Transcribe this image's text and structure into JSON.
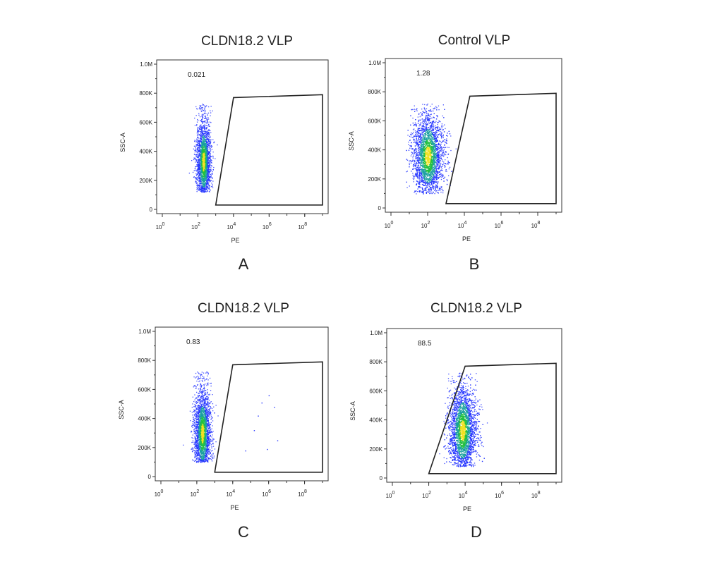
{
  "chart_data": [
    {
      "type": "scatter",
      "panel_label": "A",
      "title": "CLDN18.2 VLP",
      "xlabel": "PE",
      "ylabel": "SSC-A",
      "xscale": "log",
      "xlim": [
        1,
        1000000000
      ],
      "ylim": [
        0,
        1000000
      ],
      "xticks": [
        1,
        100,
        10000,
        1000000,
        100000000
      ],
      "yticks": [
        0,
        200000,
        400000,
        600000,
        800000,
        1000000
      ],
      "gate_percent": "0.021",
      "gate": {
        "x": [
          1000,
          10000,
          1000000000,
          1000000000
        ],
        "y": [
          30000,
          770000,
          790000,
          30000
        ]
      },
      "populations": [
        {
          "name": "",
          "center_log10_x": 2.3,
          "center_y": 330000,
          "spread_log10_x": 0.4,
          "y_range": [
            120000,
            730000
          ],
          "count": 2400
        }
      ],
      "outliers": []
    },
    {
      "type": "scatter",
      "panel_label": "B",
      "title": "Control VLP",
      "xlabel": "PE",
      "ylabel": "SSC-A",
      "xscale": "log",
      "xlim": [
        1,
        1000000000
      ],
      "ylim": [
        0,
        1000000
      ],
      "xticks": [
        1,
        100,
        10000,
        1000000,
        100000000
      ],
      "yticks": [
        0,
        200000,
        400000,
        600000,
        800000,
        1000000
      ],
      "gate_percent": "1.28",
      "gate": {
        "x": [
          1000,
          20000,
          1000000000,
          1000000000
        ],
        "y": [
          30000,
          770000,
          790000,
          30000
        ]
      },
      "populations": [
        {
          "name": "",
          "center_log10_x": 2.0,
          "center_y": 360000,
          "spread_log10_x": 0.85,
          "y_range": [
            100000,
            720000
          ],
          "count": 3600
        }
      ],
      "outliers": []
    },
    {
      "type": "scatter",
      "panel_label": "C",
      "title": "CLDN18.2 VLP",
      "xlabel": "PE",
      "ylabel": "SSC-A",
      "xscale": "log",
      "xlim": [
        1,
        1000000000
      ],
      "ylim": [
        0,
        1000000
      ],
      "xticks": [
        1,
        100,
        10000,
        1000000,
        100000000
      ],
      "yticks": [
        0,
        200000,
        400000,
        600000,
        800000,
        1000000
      ],
      "gate_percent": "0.83",
      "gate": {
        "x": [
          1000,
          10000,
          1000000000,
          1000000000
        ],
        "y": [
          30000,
          770000,
          790000,
          30000
        ]
      },
      "populations": [
        {
          "name": "",
          "center_log10_x": 2.3,
          "center_y": 300000,
          "spread_log10_x": 0.45,
          "y_range": [
            100000,
            730000
          ],
          "count": 2600
        }
      ],
      "outliers": [
        {
          "x": 50000,
          "y": 180000
        },
        {
          "x": 150000,
          "y": 320000
        },
        {
          "x": 400000,
          "y": 510000
        },
        {
          "x": 1000000,
          "y": 560000
        },
        {
          "x": 2000000,
          "y": 480000
        },
        {
          "x": 3000000,
          "y": 250000
        },
        {
          "x": 800000,
          "y": 190000
        },
        {
          "x": 250000,
          "y": 420000
        }
      ]
    },
    {
      "type": "scatter",
      "panel_label": "D",
      "title": "CLDN18.2 VLP",
      "xlabel": "PE",
      "ylabel": "SSC-A",
      "xscale": "log",
      "xlim": [
        1,
        1000000000
      ],
      "ylim": [
        0,
        1000000
      ],
      "xticks": [
        1,
        100,
        10000,
        1000000,
        100000000
      ],
      "yticks": [
        0,
        200000,
        400000,
        600000,
        800000,
        1000000
      ],
      "gate_percent": "88.5",
      "gate": {
        "x": [
          100,
          10000,
          1000000000,
          1000000000
        ],
        "y": [
          30000,
          770000,
          790000,
          30000
        ]
      },
      "populations": [
        {
          "name": "",
          "center_log10_x": 3.85,
          "center_y": 330000,
          "spread_log10_x": 0.75,
          "y_range": [
            80000,
            730000
          ],
          "count": 3800
        }
      ],
      "outliers": []
    }
  ],
  "tick_text": {
    "x_base": "10",
    "x_exponents": [
      "0",
      "2",
      "4",
      "6",
      "8"
    ],
    "y_labels": [
      "0",
      "200K",
      "400K",
      "600K",
      "800K",
      "1.0M"
    ]
  },
  "colors": {
    "density_low": "#2233ff",
    "density_mid": "#19a0a0",
    "density_high": "#22c040",
    "density_peak": "#f0e020",
    "gate_line": "#222222",
    "axis": "#333333"
  }
}
